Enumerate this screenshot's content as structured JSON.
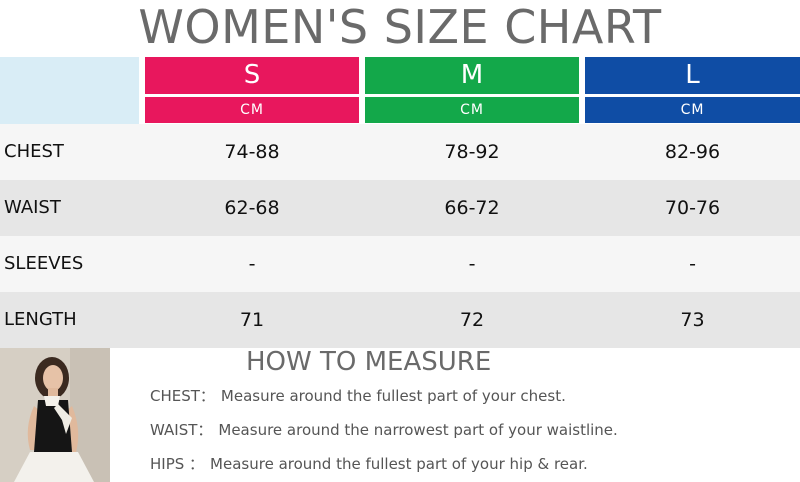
{
  "title": "WOMEN'S SIZE CHART",
  "sizes": [
    {
      "label": "S",
      "unit": "CM",
      "color": "#e8175d"
    },
    {
      "label": "M",
      "unit": "CM",
      "color": "#13a84a"
    },
    {
      "label": "L",
      "unit": "CM",
      "color": "#0f4da5"
    }
  ],
  "rows": [
    {
      "label": "CHEST",
      "values": [
        "74-88",
        "78-92",
        "82-96"
      ]
    },
    {
      "label": "WAIST",
      "values": [
        "62-68",
        "66-72",
        "70-76"
      ]
    },
    {
      "label": "SLEEVES",
      "values": [
        "-",
        "-",
        "-"
      ]
    },
    {
      "label": "LENGTH",
      "values": [
        "71",
        "72",
        "73"
      ]
    }
  ],
  "how_to_measure": {
    "title": "HOW TO MEASURE",
    "items": [
      {
        "key": "CHEST：",
        "text": "Measure around the fullest part of your chest."
      },
      {
        "key": "WAIST：",
        "text": "Measure around the narrowest part of your waistline."
      },
      {
        "key": "HIPS  ：",
        "text": "Measure around the fullest part of your hip & rear."
      }
    ]
  }
}
